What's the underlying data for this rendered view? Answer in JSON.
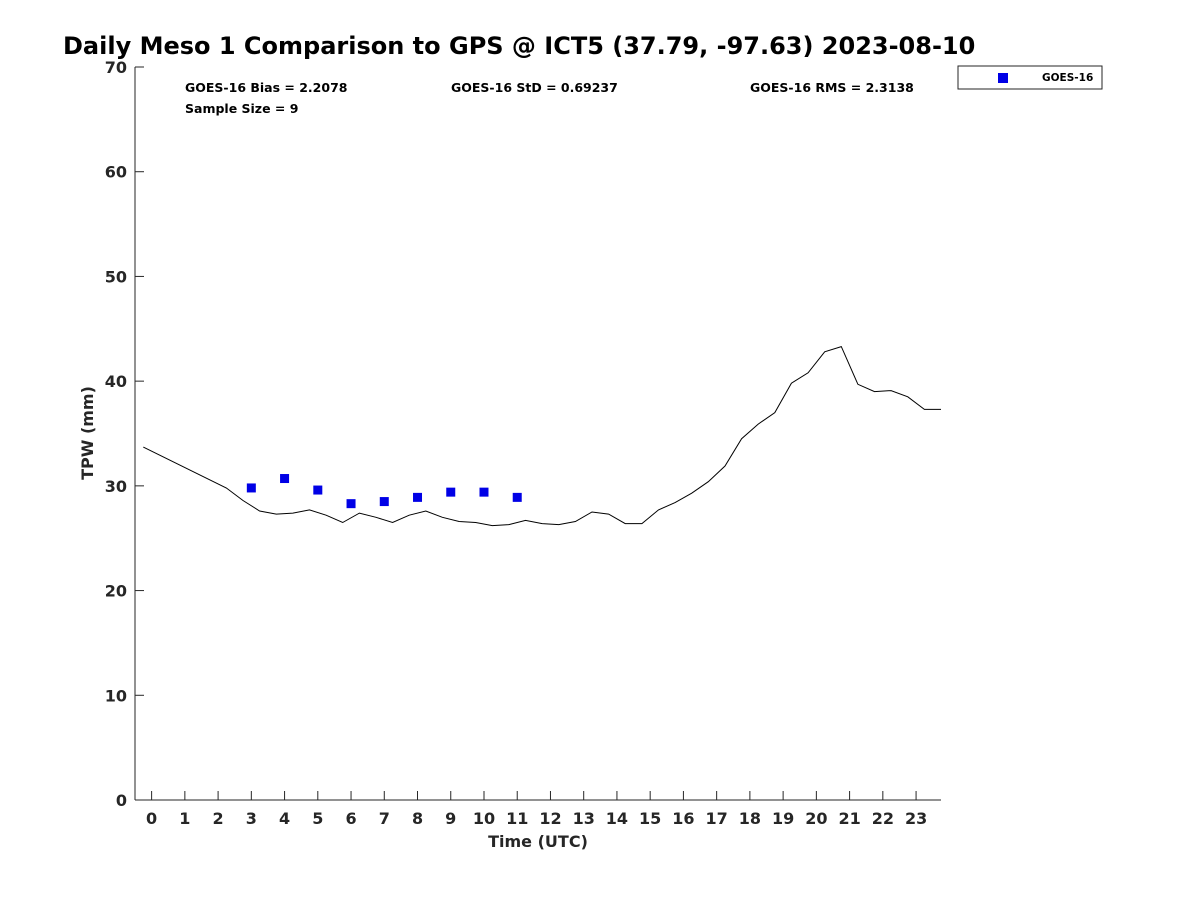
{
  "chart_data": {
    "type": "scatter",
    "title": "Daily Meso 1 Comparison to GPS @ ICT5 (37.79, -97.63) 2023-08-10",
    "xlabel": "Time (UTC)",
    "ylabel": "TPW (mm)",
    "xlim": [
      -0.5,
      23.75
    ],
    "ylim": [
      0,
      70
    ],
    "x_ticks": [
      0,
      1,
      2,
      3,
      4,
      5,
      6,
      7,
      8,
      9,
      10,
      11,
      12,
      13,
      14,
      15,
      16,
      17,
      18,
      19,
      20,
      21,
      22,
      23
    ],
    "y_ticks": [
      0,
      10,
      20,
      30,
      40,
      50,
      60,
      70
    ],
    "grid": false,
    "legend_position": "top-right",
    "stats": {
      "bias": "GOES-16 Bias = 2.2078",
      "std": "GOES-16 StD = 0.69237",
      "rms": "GOES-16 RMS = 2.3138",
      "sample_size": "Sample Size = 9"
    },
    "series": [
      {
        "kind": "line",
        "color": "#000000",
        "x": [
          -0.25,
          2.25,
          2.75,
          3.25,
          3.75,
          4.25,
          4.75,
          5.25,
          5.75,
          6.25,
          6.75,
          7.25,
          7.75,
          8.25,
          8.75,
          9.25,
          9.75,
          10.25,
          10.75,
          11.25,
          11.75,
          12.25,
          12.75,
          13.25,
          13.75,
          14.25,
          14.75,
          15.25,
          15.75,
          16.25,
          16.75,
          17.25,
          17.75,
          18.25,
          18.75,
          19.25,
          19.75,
          20.25,
          20.75,
          21.25,
          21.75,
          22.25,
          22.75,
          23.25,
          23.75
        ],
        "y": [
          33.7,
          29.8,
          28.6,
          27.6,
          27.3,
          27.4,
          27.7,
          27.2,
          26.5,
          27.4,
          27.0,
          26.5,
          27.2,
          27.6,
          27.0,
          26.6,
          26.5,
          26.2,
          26.3,
          26.7,
          26.4,
          26.3,
          26.6,
          27.5,
          27.3,
          26.4,
          26.4,
          27.7,
          28.4,
          29.3,
          30.4,
          31.9,
          34.5,
          35.9,
          37.0,
          39.8,
          40.8,
          42.8,
          43.3,
          39.7,
          39.0,
          39.1,
          38.5,
          37.3,
          37.3
        ]
      },
      {
        "name": "GOES-16",
        "kind": "scatter",
        "color": "#0000e6",
        "x": [
          3.0,
          4.0,
          5.0,
          6.0,
          7.0,
          8.0,
          9.0,
          10.0,
          11.0
        ],
        "y": [
          29.8,
          30.7,
          29.6,
          28.3,
          28.5,
          28.9,
          29.4,
          29.4,
          28.9
        ]
      }
    ]
  }
}
